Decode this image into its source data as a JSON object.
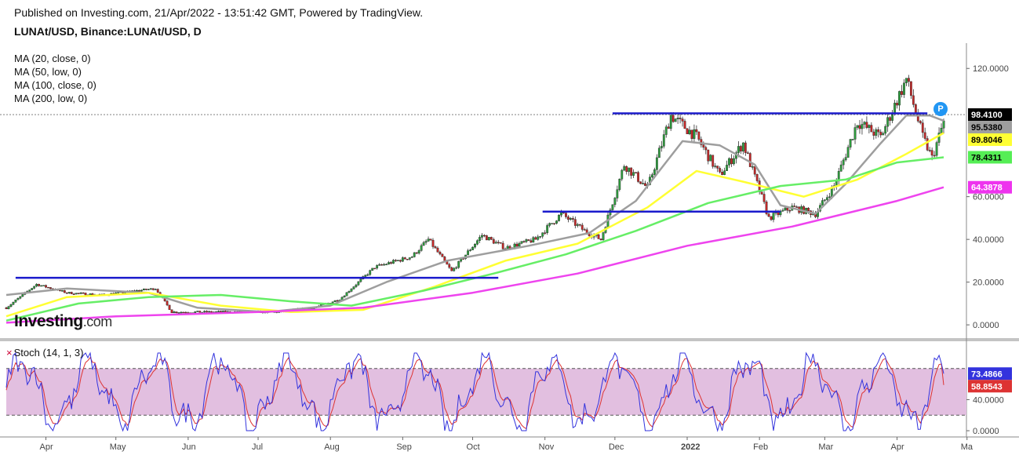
{
  "header": {
    "published": "Published on Investing.com, 21/Apr/2022 - 13:51:42 GMT, Powered by TradingView.",
    "symbol": "LUNAt/USD, Binance:LUNAt/USD, D"
  },
  "indicators": [
    "MA (20, close, 0)",
    "MA (50, low, 0)",
    "MA (100, close, 0)",
    "MA (200, low, 0)"
  ],
  "logo": {
    "brand": "Investing",
    "suffix": ".com"
  },
  "stoch": {
    "title": "Stoch (14, 1, 3)",
    "mark": "×"
  },
  "p_marker": "P",
  "colors": {
    "bull": "#2e9e3e",
    "bear": "#c62828",
    "ma20": "#9e9e9e",
    "ma50": "#ffff33",
    "ma100": "#66ee66",
    "ma200": "#ee44ee",
    "level": "#1a1acc",
    "stoch_fill": "#e2bfe0",
    "stoch_k": "#3333dd",
    "stoch_d": "#dd3333",
    "price_label": "#000000",
    "p_marker": "#2196f3"
  },
  "chart_data": {
    "type": "candlestick",
    "title": "LUNAt/USD, Binance:LUNAt/USD, D",
    "x_ticks": [
      "Apr",
      "May",
      "Jun",
      "Jul",
      "Aug",
      "Sep",
      "Oct",
      "Nov",
      "Dec",
      "2022",
      "Feb",
      "Mar",
      "Apr",
      "Ma"
    ],
    "price_axis": {
      "ticks": [
        0,
        20,
        40,
        60,
        120
      ],
      "tick_labels": [
        "0.0000",
        "20.0000",
        "40.0000",
        "60.0000",
        "120.0000"
      ],
      "range": [
        -4,
        130
      ]
    },
    "price_path": [
      [
        "2021-03-15",
        8
      ],
      [
        "2021-03-28",
        19
      ],
      [
        "2021-04-10",
        15
      ],
      [
        "2021-04-25",
        14
      ],
      [
        "2021-05-10",
        16
      ],
      [
        "2021-05-18",
        17
      ],
      [
        "2021-05-25",
        6
      ],
      [
        "2021-06-10",
        6
      ],
      [
        "2021-06-25",
        6
      ],
      [
        "2021-07-10",
        6
      ],
      [
        "2021-07-25",
        8
      ],
      [
        "2021-08-05",
        12
      ],
      [
        "2021-08-20",
        27
      ],
      [
        "2021-09-05",
        32
      ],
      [
        "2021-09-12",
        40
      ],
      [
        "2021-09-22",
        25
      ],
      [
        "2021-10-05",
        42
      ],
      [
        "2021-10-15",
        36
      ],
      [
        "2021-10-28",
        40
      ],
      [
        "2021-11-08",
        52
      ],
      [
        "2021-11-18",
        44
      ],
      [
        "2021-11-25",
        40
      ],
      [
        "2021-12-05",
        75
      ],
      [
        "2021-12-15",
        64
      ],
      [
        "2021-12-25",
        98
      ],
      [
        "2022-01-05",
        88
      ],
      [
        "2022-01-15",
        70
      ],
      [
        "2022-01-25",
        85
      ],
      [
        "2022-02-05",
        50
      ],
      [
        "2022-02-15",
        55
      ],
      [
        "2022-02-25",
        52
      ],
      [
        "2022-03-05",
        65
      ],
      [
        "2022-03-15",
        95
      ],
      [
        "2022-03-25",
        88
      ],
      [
        "2022-04-05",
        115
      ],
      [
        "2022-04-12",
        88
      ],
      [
        "2022-04-16",
        78
      ],
      [
        "2022-04-21",
        95
      ]
    ],
    "moving_averages": [
      {
        "name": "MA (20, close, 0)",
        "last": 95.538,
        "label": "95.5380",
        "points": [
          [
            "2021-03-15",
            14
          ],
          [
            "2021-04-10",
            17
          ],
          [
            "2021-05-15",
            15
          ],
          [
            "2021-06-05",
            8
          ],
          [
            "2021-07-05",
            6
          ],
          [
            "2021-08-01",
            9
          ],
          [
            "2021-08-25",
            20
          ],
          [
            "2021-09-20",
            30
          ],
          [
            "2021-10-25",
            37
          ],
          [
            "2021-11-20",
            43
          ],
          [
            "2021-12-10",
            58
          ],
          [
            "2021-12-30",
            86
          ],
          [
            "2022-01-15",
            84
          ],
          [
            "2022-01-30",
            75
          ],
          [
            "2022-02-10",
            56
          ],
          [
            "2022-02-25",
            52
          ],
          [
            "2022-03-10",
            66
          ],
          [
            "2022-03-25",
            85
          ],
          [
            "2022-04-05",
            98
          ],
          [
            "2022-04-15",
            98
          ],
          [
            "2022-04-21",
            95.538
          ]
        ]
      },
      {
        "name": "MA (50, low, 0)",
        "last": 89.8046,
        "label": "89.8046",
        "points": [
          [
            "2021-03-15",
            4
          ],
          [
            "2021-04-10",
            13
          ],
          [
            "2021-05-15",
            15
          ],
          [
            "2021-06-15",
            9
          ],
          [
            "2021-07-15",
            6
          ],
          [
            "2021-08-15",
            7
          ],
          [
            "2021-09-15",
            18
          ],
          [
            "2021-10-15",
            30
          ],
          [
            "2021-11-15",
            38
          ],
          [
            "2021-12-15",
            55
          ],
          [
            "2022-01-05",
            72
          ],
          [
            "2022-01-25",
            67
          ],
          [
            "2022-02-20",
            60
          ],
          [
            "2022-03-15",
            68
          ],
          [
            "2022-04-05",
            80
          ],
          [
            "2022-04-21",
            89.8046
          ]
        ]
      },
      {
        "name": "MA (100, close, 0)",
        "last": 78.4311,
        "label": "78.4311",
        "points": [
          [
            "2021-03-15",
            2
          ],
          [
            "2021-04-15",
            10
          ],
          [
            "2021-05-15",
            13
          ],
          [
            "2021-06-15",
            14
          ],
          [
            "2021-07-15",
            11
          ],
          [
            "2021-08-10",
            9
          ],
          [
            "2021-09-10",
            16
          ],
          [
            "2021-10-10",
            24
          ],
          [
            "2021-11-10",
            33
          ],
          [
            "2021-12-10",
            44
          ],
          [
            "2022-01-10",
            57
          ],
          [
            "2022-02-10",
            65
          ],
          [
            "2022-03-10",
            68
          ],
          [
            "2022-04-01",
            76
          ],
          [
            "2022-04-21",
            78.4311
          ]
        ]
      },
      {
        "name": "MA (200, low, 0)",
        "last": 64.3878,
        "label": "64.3878",
        "points": [
          [
            "2021-03-15",
            1
          ],
          [
            "2021-05-01",
            4
          ],
          [
            "2021-07-01",
            6
          ],
          [
            "2021-08-15",
            8
          ],
          [
            "2021-10-01",
            15
          ],
          [
            "2021-11-15",
            24
          ],
          [
            "2022-01-01",
            37
          ],
          [
            "2022-02-15",
            46
          ],
          [
            "2022-04-01",
            58
          ],
          [
            "2022-04-21",
            64.3878
          ]
        ]
      }
    ],
    "levels": [
      {
        "y": 22,
        "from": "2021-03-19",
        "to": "2021-10-12"
      },
      {
        "y": 53,
        "from": "2021-10-31",
        "to": "2022-02-10"
      },
      {
        "y": 99,
        "from": "2021-11-30",
        "to": "2022-04-14"
      }
    ],
    "current_price": {
      "value": 98.41,
      "label": "98.4100"
    },
    "stochastic": {
      "title": "Stoch (14, 1, 3)",
      "range": [
        -4,
        100
      ],
      "upper": 80,
      "lower": 20,
      "tick_values": [
        0,
        40
      ],
      "tick_labels": [
        "0.0000",
        "40.0000"
      ],
      "k_last": 73.4866,
      "k_label": "73.4866",
      "d_last": 58.8543,
      "d_label": "58.8543"
    },
    "date_range": [
      "2021-03-15",
      "2022-04-21"
    ],
    "ticks_at": [
      "2021-04-01",
      "2021-05-01",
      "2021-06-01",
      "2021-07-01",
      "2021-08-01",
      "2021-09-01",
      "2021-10-01",
      "2021-11-01",
      "2021-12-01",
      "2022-01-01",
      "2022-02-01",
      "2022-03-01",
      "2022-04-01",
      "2022-05-01"
    ]
  }
}
